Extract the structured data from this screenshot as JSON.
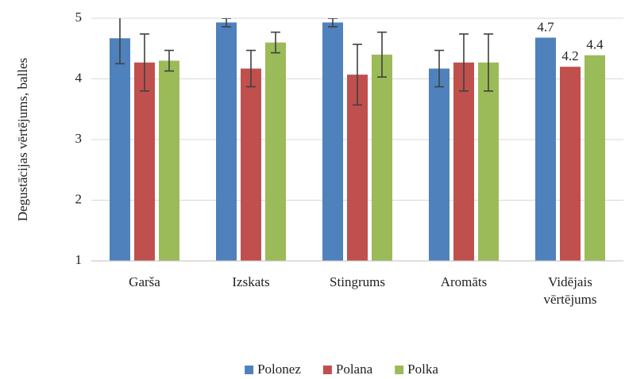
{
  "chart_data": {
    "type": "bar",
    "y_label": "Degustācijas vērtējums, balles",
    "categories": [
      "Garša",
      "Izskats",
      "Stingrums",
      "Aromāts",
      "Vidējais vērtējums"
    ],
    "series": [
      {
        "name": "Polonez",
        "color": "#4f81bd",
        "values": [
          4.67,
          4.93,
          4.93,
          4.17,
          4.68
        ],
        "errors": [
          0.42,
          0.07,
          0.07,
          0.3,
          null
        ],
        "value_labels": [
          null,
          null,
          null,
          null,
          "4.7"
        ]
      },
      {
        "name": "Polana",
        "color": "#c0504d",
        "values": [
          4.27,
          4.17,
          4.07,
          4.27,
          4.2
        ],
        "errors": [
          0.47,
          0.3,
          0.5,
          0.47,
          null
        ],
        "value_labels": [
          null,
          null,
          null,
          null,
          "4.2"
        ]
      },
      {
        "name": "Polka",
        "color": "#9bbb59",
        "values": [
          4.3,
          4.6,
          4.4,
          4.27,
          4.39
        ],
        "errors": [
          0.17,
          0.17,
          0.37,
          0.47,
          null
        ],
        "value_labels": [
          null,
          null,
          null,
          null,
          "4.4"
        ]
      }
    ],
    "ylim": [
      1,
      5
    ],
    "yticks": [
      1,
      2,
      3,
      4,
      5
    ],
    "grid": true,
    "legend": "bottom"
  }
}
